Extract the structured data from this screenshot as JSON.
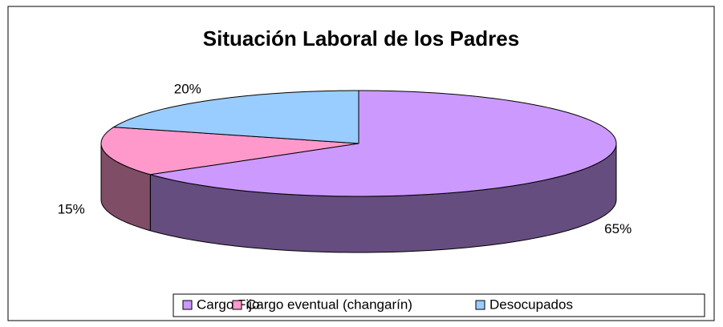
{
  "chart_data": {
    "type": "pie3d",
    "title": "Situación Laboral de los Padres",
    "categories": [
      "Cargo Fijo",
      "Cargo eventual (changarín)",
      "Desocupados"
    ],
    "values": [
      65,
      15,
      20
    ],
    "value_labels": [
      "65%",
      "15%",
      "20%"
    ],
    "colors": [
      "#cc99ff",
      "#ff99cc",
      "#99ccff"
    ],
    "legend": "bottom"
  }
}
